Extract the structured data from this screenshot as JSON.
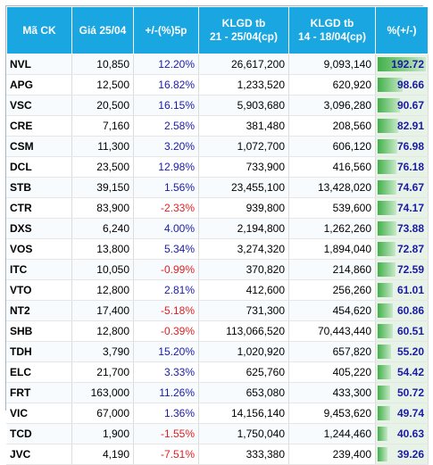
{
  "headers": {
    "ck": "Mã CK",
    "price": "Giá 25/04",
    "change": "+/-(%)5p",
    "vol1_line1": "KLGD tb",
    "vol1_line2": "21 - 25/04(cp)",
    "vol2_line1": "KLGD tb",
    "vol2_line2": "14 - 18/04(cp)",
    "pct": "%(+/-)"
  },
  "rows": [
    {
      "ck": "NVL",
      "price": "10,850",
      "change": "12.20%",
      "vol1": "26,617,200",
      "vol2": "9,093,140",
      "pct": "192.72",
      "pct_value": 192.72
    },
    {
      "ck": "APG",
      "price": "12,500",
      "change": "16.82%",
      "vol1": "1,233,520",
      "vol2": "620,920",
      "pct": "98.66",
      "pct_value": 98.66
    },
    {
      "ck": "VSC",
      "price": "20,500",
      "change": "16.15%",
      "vol1": "5,903,680",
      "vol2": "3,096,280",
      "pct": "90.67",
      "pct_value": 90.67
    },
    {
      "ck": "CRE",
      "price": "7,160",
      "change": "2.58%",
      "vol1": "381,480",
      "vol2": "208,560",
      "pct": "82.91",
      "pct_value": 82.91
    },
    {
      "ck": "CSM",
      "price": "11,300",
      "change": "3.20%",
      "vol1": "1,072,700",
      "vol2": "606,120",
      "pct": "76.98",
      "pct_value": 76.98
    },
    {
      "ck": "DCL",
      "price": "23,500",
      "change": "12.98%",
      "vol1": "733,900",
      "vol2": "416,560",
      "pct": "76.18",
      "pct_value": 76.18
    },
    {
      "ck": "STB",
      "price": "39,150",
      "change": "1.56%",
      "vol1": "23,455,100",
      "vol2": "13,428,020",
      "pct": "74.67",
      "pct_value": 74.67
    },
    {
      "ck": "CTR",
      "price": "83,900",
      "change": "-2.33%",
      "vol1": "939,800",
      "vol2": "539,600",
      "pct": "74.17",
      "pct_value": 74.17
    },
    {
      "ck": "DXS",
      "price": "6,240",
      "change": "4.00%",
      "vol1": "2,194,800",
      "vol2": "1,262,260",
      "pct": "73.88",
      "pct_value": 73.88
    },
    {
      "ck": "VOS",
      "price": "13,800",
      "change": "5.34%",
      "vol1": "3,274,320",
      "vol2": "1,894,040",
      "pct": "72.87",
      "pct_value": 72.87
    },
    {
      "ck": "ITC",
      "price": "10,050",
      "change": "-0.99%",
      "vol1": "370,820",
      "vol2": "214,860",
      "pct": "72.59",
      "pct_value": 72.59
    },
    {
      "ck": "VTO",
      "price": "12,800",
      "change": "2.81%",
      "vol1": "412,600",
      "vol2": "256,260",
      "pct": "61.01",
      "pct_value": 61.01
    },
    {
      "ck": "NT2",
      "price": "17,400",
      "change": "-5.18%",
      "vol1": "731,300",
      "vol2": "454,620",
      "pct": "60.86",
      "pct_value": 60.86
    },
    {
      "ck": "SHB",
      "price": "12,800",
      "change": "-0.39%",
      "vol1": "113,066,520",
      "vol2": "70,443,440",
      "pct": "60.51",
      "pct_value": 60.51
    },
    {
      "ck": "TDH",
      "price": "3,790",
      "change": "15.20%",
      "vol1": "1,020,920",
      "vol2": "657,820",
      "pct": "55.20",
      "pct_value": 55.2
    },
    {
      "ck": "ELC",
      "price": "21,700",
      "change": "3.33%",
      "vol1": "625,760",
      "vol2": "405,220",
      "pct": "54.42",
      "pct_value": 54.42
    },
    {
      "ck": "FRT",
      "price": "163,000",
      "change": "11.26%",
      "vol1": "653,080",
      "vol2": "433,300",
      "pct": "50.72",
      "pct_value": 50.72
    },
    {
      "ck": "VIC",
      "price": "67,000",
      "change": "1.36%",
      "vol1": "14,156,140",
      "vol2": "9,453,620",
      "pct": "49.74",
      "pct_value": 49.74
    },
    {
      "ck": "TCD",
      "price": "1,900",
      "change": "-1.55%",
      "vol1": "1,750,040",
      "vol2": "1,244,460",
      "pct": "40.63",
      "pct_value": 40.63
    },
    {
      "ck": "JVC",
      "price": "4,190",
      "change": "-7.51%",
      "vol1": "333,380",
      "vol2": "239,400",
      "pct": "39.26",
      "pct_value": 39.26
    }
  ],
  "colors": {
    "header_bg": "#1aa6e0",
    "positive": "#1a1aa6",
    "negative": "#e01f1f",
    "bar": "#42b04a"
  }
}
